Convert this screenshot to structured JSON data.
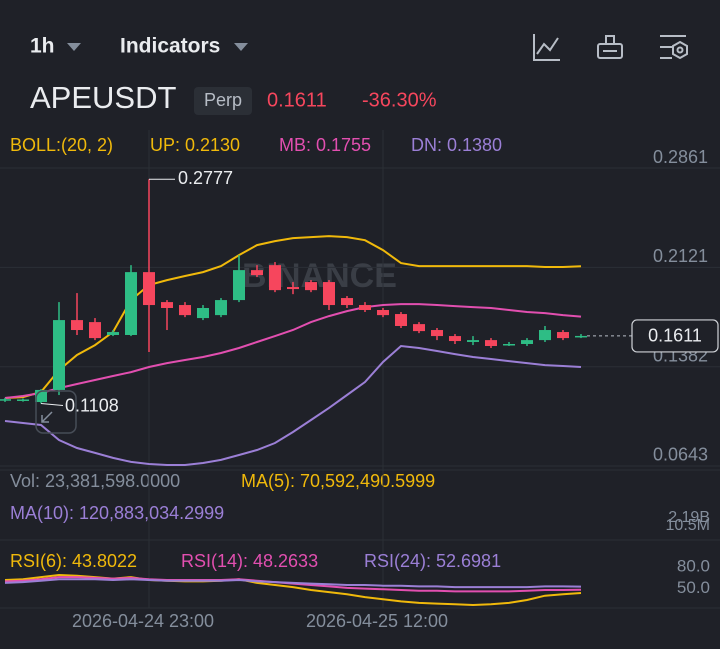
{
  "header": {
    "interval": "1h",
    "indicators": "Indicators"
  },
  "ticker": {
    "symbol": "APEUSDT",
    "badge": "Perp",
    "change": "-36.30%"
  },
  "chart_data": {
    "type": "candlestick",
    "indicator": "BOLL:(20, 2)",
    "watermark": "BINANCE",
    "up_color": "#2ebd85",
    "down_color": "#f6465d",
    "categories": [
      null,
      null,
      null,
      null,
      null,
      null,
      null,
      null,
      "2026-04-24 23:00",
      null,
      null,
      null,
      null,
      null,
      null,
      null,
      null,
      null,
      null,
      null,
      null,
      "2026-04-25 12:00",
      null,
      null,
      null,
      null,
      null,
      null,
      null,
      null,
      null,
      null,
      null
    ],
    "open": [
      0.1134,
      0.113,
      0.1119,
      0.1209,
      0.1729,
      0.1714,
      0.1618,
      0.1618,
      0.2086,
      0.1863,
      0.1841,
      0.1744,
      0.1766,
      0.1878,
      0.2101,
      0.2138,
      0.1975,
      0.2012,
      0.2012,
      0.1893,
      0.1841,
      0.1804,
      0.1774,
      0.1699,
      0.1655,
      0.161,
      0.1566,
      0.158,
      0.1543,
      0.1551,
      0.158,
      0.164,
      0.1603
    ],
    "high": [
      0.115,
      0.1145,
      0.1215,
      0.1863,
      0.193,
      0.1744,
      0.1655,
      0.2138,
      0.2777,
      0.1878,
      0.1863,
      0.1841,
      0.1893,
      0.2213,
      0.2138,
      0.2161,
      0.2012,
      0.2027,
      0.2027,
      0.1908,
      0.1863,
      0.1819,
      0.1789,
      0.1714,
      0.167,
      0.1625,
      0.161,
      0.1595,
      0.1566,
      0.1595,
      0.1685,
      0.1655,
      0.1625
    ],
    "low": [
      0.112,
      0.1122,
      0.1108,
      0.1171,
      0.1618,
      0.158,
      0.161,
      0.161,
      0.1491,
      0.1655,
      0.1751,
      0.1729,
      0.1751,
      0.1863,
      0.2049,
      0.1937,
      0.1922,
      0.1937,
      0.1804,
      0.1819,
      0.1789,
      0.1751,
      0.167,
      0.1632,
      0.158,
      0.1551,
      0.1543,
      0.1521,
      0.1536,
      0.1536,
      0.1566,
      0.158,
      0.1595
    ],
    "close": [
      0.114,
      0.1138,
      0.1209,
      0.1729,
      0.1655,
      0.1595,
      0.164,
      0.2086,
      0.1841,
      0.1819,
      0.1766,
      0.1819,
      0.1878,
      0.2101,
      0.2064,
      0.1952,
      0.196,
      0.1952,
      0.1841,
      0.1841,
      0.1804,
      0.1766,
      0.1685,
      0.1647,
      0.161,
      0.1573,
      0.158,
      0.1536,
      0.1551,
      0.158,
      0.1655,
      0.1595,
      0.1611
    ],
    "series": [
      {
        "name": "UP: 0.2130",
        "color": "#f0b90b",
        "values": [
          0.1149,
          0.1156,
          0.1194,
          0.1357,
          0.1469,
          0.1543,
          0.164,
          0.1878,
          0.199,
          0.2027,
          0.2057,
          0.2086,
          0.2131,
          0.2213,
          0.2287,
          0.2317,
          0.2339,
          0.2347,
          0.2354,
          0.2347,
          0.2324,
          0.225,
          0.2153,
          0.2131,
          0.2131,
          0.2131,
          0.2131,
          0.2131,
          0.2131,
          0.2131,
          0.2124,
          0.2124,
          0.213
        ]
      },
      {
        "name": "MB: 0.1755",
        "color": "#e24fb0",
        "values": [
          0.1149,
          0.1164,
          0.1186,
          0.1223,
          0.1253,
          0.1283,
          0.1313,
          0.1342,
          0.138,
          0.1409,
          0.1432,
          0.1454,
          0.1484,
          0.1521,
          0.1566,
          0.161,
          0.1655,
          0.1714,
          0.1759,
          0.1796,
          0.1826,
          0.1841,
          0.1848,
          0.1848,
          0.1841,
          0.1833,
          0.1826,
          0.1819,
          0.1804,
          0.1789,
          0.1781,
          0.1766,
          0.1755
        ]
      },
      {
        "name": "DN: 0.1380",
        "color": "#9b7fd6",
        "values": [
          0.0978,
          0.0963,
          0.0948,
          0.0836,
          0.0777,
          0.074,
          0.0703,
          0.0673,
          0.0658,
          0.065,
          0.065,
          0.0665,
          0.0688,
          0.0725,
          0.0762,
          0.0814,
          0.0896,
          0.0985,
          0.1075,
          0.1171,
          0.1268,
          0.1417,
          0.1536,
          0.1521,
          0.1499,
          0.1476,
          0.1454,
          0.1439,
          0.1424,
          0.1409,
          0.1394,
          0.1387,
          0.138
        ]
      }
    ],
    "ylim": [
      0.0613,
      0.3144
    ],
    "yticks": [
      0.2861,
      0.2121,
      0.1382,
      0.0643
    ],
    "grid": true
  },
  "volume": {
    "vol": "Vol: 23,381,598.0000",
    "ma5": "MA(5): 70,592,490.5999",
    "ma10": "MA(10): 120,883,034.2999",
    "axis_labels": [
      "2.19B",
      "10.5M"
    ]
  },
  "rsi": {
    "type": "line",
    "series": [
      {
        "name": "RSI(6): 43.8022",
        "color": "#f0b90b",
        "values": [
          62,
          63,
          66,
          69,
          68,
          66,
          64,
          66,
          62,
          61,
          60,
          60,
          61,
          63,
          58,
          55,
          52,
          48,
          45,
          42,
          38,
          35,
          32,
          30,
          29,
          28,
          27,
          28,
          30,
          34,
          40,
          42,
          43.8022
        ]
      },
      {
        "name": "RSI(14): 48.2633",
        "color": "#e24fb0",
        "values": [
          60,
          61,
          63,
          66,
          66,
          65,
          64,
          65,
          63,
          62,
          62,
          62,
          62,
          63,
          61,
          59,
          57,
          55,
          53,
          51,
          50,
          49,
          48,
          47,
          47,
          46,
          46,
          46,
          46,
          47,
          48,
          48,
          48.2633
        ]
      },
      {
        "name": "RSI(24): 52.6981",
        "color": "#9b7fd6",
        "values": [
          58,
          59,
          61,
          63,
          63,
          63,
          62,
          63,
          62,
          61,
          61,
          61,
          61,
          62,
          60,
          59,
          58,
          57,
          56,
          55,
          55,
          54,
          54,
          53,
          53,
          52,
          52,
          52,
          52,
          52,
          53,
          53,
          52.6981
        ]
      }
    ],
    "ylim": [
      20,
      90
    ],
    "yticks": [
      {
        "value": 80,
        "label": "80.0"
      },
      {
        "value": 50,
        "label": "50.0"
      }
    ]
  }
}
